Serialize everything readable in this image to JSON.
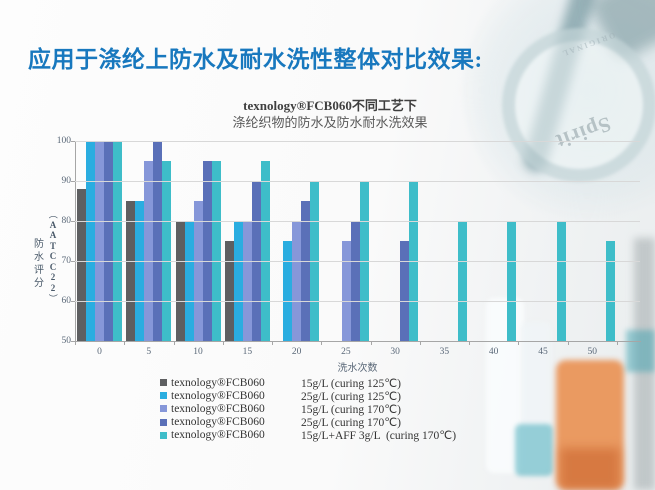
{
  "slide": {
    "title": "应用于涤纶上防水及耐水洗性整体对比效果:",
    "title_color": "#1878be"
  },
  "background": {
    "watermark_primary": "Spirit",
    "watermark_secondary": "ORIGINAL"
  },
  "chart_data": {
    "type": "bar",
    "title_line1": "texnology®FCB060不同工艺下",
    "title_line2": "涤纶织物的防水及防水耐水洗效果",
    "xlabel": "洗水次数",
    "ylabel_cn": "防水评分",
    "ylabel_paren": "（AATCC 22）",
    "ylim": [
      50,
      100
    ],
    "yticks": [
      50,
      60,
      70,
      80,
      90,
      100
    ],
    "grid": true,
    "legend_position": "bottom",
    "categories": [
      "0",
      "5",
      "10",
      "15",
      "20",
      "25",
      "30",
      "35",
      "40",
      "45",
      "50"
    ],
    "series": [
      {
        "name": "texnology®FCB060  15g/L (curing 125℃)",
        "color": "#5e5f61",
        "values": [
          88,
          85,
          80,
          75,
          null,
          null,
          null,
          null,
          null,
          null,
          null
        ]
      },
      {
        "name": "texnology®FCB060  25g/L (curing 125℃)",
        "color": "#2aade0",
        "values": [
          100,
          85,
          80,
          80,
          75,
          null,
          null,
          null,
          null,
          null,
          null
        ]
      },
      {
        "name": "texnology®FCB060  15g/L (curing 170℃)",
        "color": "#8697d9",
        "values": [
          100,
          95,
          85,
          80,
          80,
          75,
          null,
          null,
          null,
          null,
          null
        ]
      },
      {
        "name": "texnology®FCB060  25g/L (curing 170℃)",
        "color": "#5a70b8",
        "values": [
          100,
          100,
          95,
          90,
          85,
          80,
          75,
          null,
          null,
          null,
          null
        ]
      },
      {
        "name": "texnology®FCB060  15g/L+AFF 3g/L (curing 170℃)",
        "color": "#3ebdc9",
        "values": [
          100,
          95,
          95,
          95,
          90,
          90,
          90,
          80,
          80,
          80,
          75
        ]
      }
    ],
    "legend": [
      {
        "product": "texnology®FCB060",
        "condition": "15g/L (curing 125℃)"
      },
      {
        "product": "texnology®FCB060",
        "condition": "25g/L (curing 125℃)"
      },
      {
        "product": "texnology®FCB060",
        "condition": "15g/L (curing 170℃)"
      },
      {
        "product": "texnology®FCB060",
        "condition": "25g/L (curing 170℃)"
      },
      {
        "product": "texnology®FCB060",
        "condition": "15g/L+AFF 3g/L  (curing 170℃)"
      }
    ]
  }
}
